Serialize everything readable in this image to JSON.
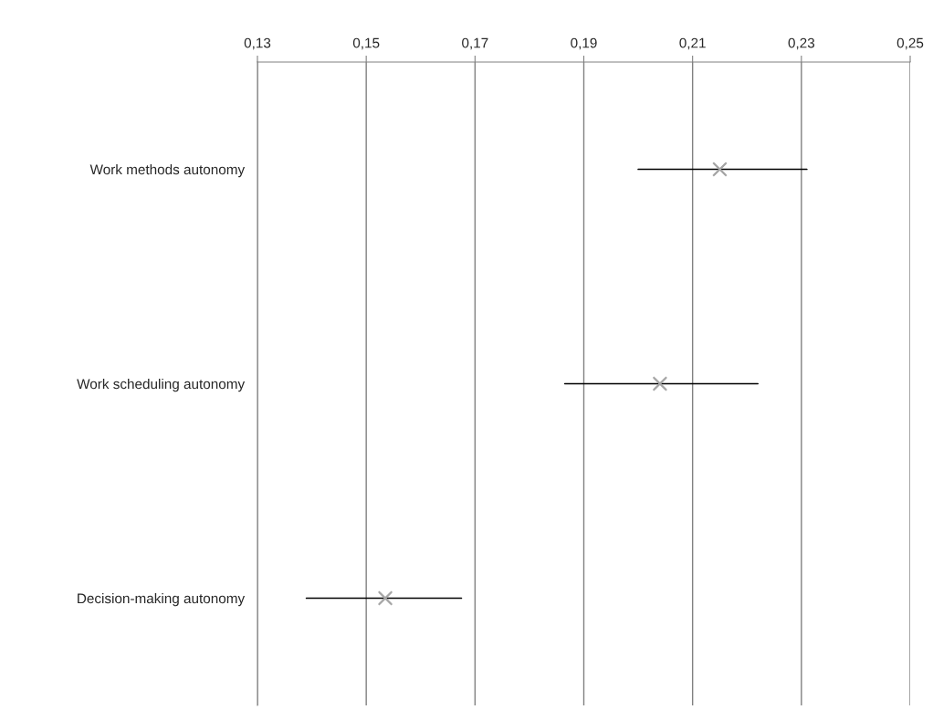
{
  "chart_data": {
    "type": "scatter",
    "orientation": "horizontal",
    "categories": [
      "Work methods autonomy",
      "Work scheduling autonomy",
      "Decision-making autonomy"
    ],
    "values": [
      0.215,
      0.204,
      0.1535
    ],
    "errors": [
      [
        0.2,
        0.231
      ],
      [
        0.1865,
        0.222
      ],
      [
        0.139,
        0.1675
      ]
    ],
    "color": "#a6a6a6",
    "marker": "cross",
    "xlim": [
      0.13,
      0.25
    ],
    "xticks": [
      {
        "value": 0.13,
        "label": "0,13"
      },
      {
        "value": 0.15,
        "label": "0,15"
      },
      {
        "value": 0.17,
        "label": "0,17"
      },
      {
        "value": 0.19,
        "label": "0,19"
      },
      {
        "value": 0.21,
        "label": "0,21"
      },
      {
        "value": 0.23,
        "label": "0,23"
      },
      {
        "value": 0.25,
        "label": "0,25"
      }
    ],
    "grid": "x",
    "legend": false
  }
}
